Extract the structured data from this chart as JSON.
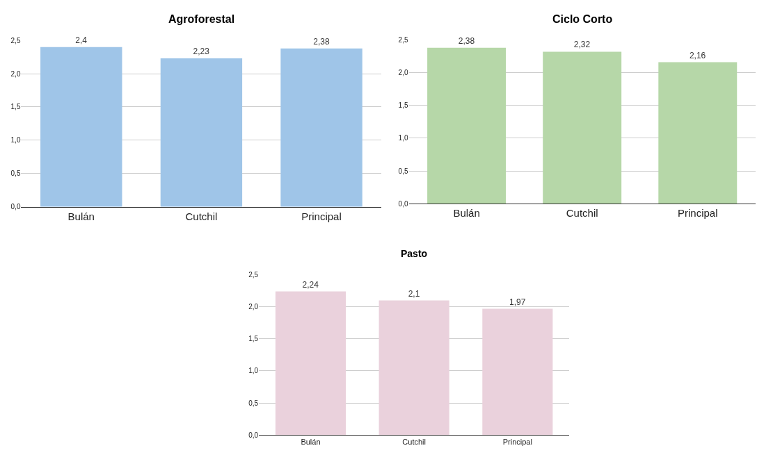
{
  "chart_data": [
    {
      "type": "bar",
      "title": "Agroforestal",
      "categories": [
        "Bulán",
        "Cutchil",
        "Principal"
      ],
      "values": [
        2.4,
        2.23,
        2.38
      ],
      "value_labels": [
        "2,4",
        "2,23",
        "2,38"
      ],
      "color": "#9fc5e8",
      "ylim": [
        0,
        2.5
      ],
      "yticks": [
        {
          "value": 0,
          "label": "0,0"
        },
        {
          "value": 0.5,
          "label": "0,5"
        },
        {
          "value": 1,
          "label": "1,0"
        },
        {
          "value": 1.5,
          "label": "1,5"
        },
        {
          "value": 2,
          "label": "2,0"
        },
        {
          "value": 2.5,
          "label": "2,5"
        }
      ],
      "grid": "y"
    },
    {
      "type": "bar",
      "title": "Ciclo Corto",
      "categories": [
        "Bulán",
        "Cutchil",
        "Principal"
      ],
      "values": [
        2.38,
        2.32,
        2.16
      ],
      "value_labels": [
        "2,38",
        "2,32",
        "2,16"
      ],
      "color": "#b6d7a8",
      "ylim": [
        0,
        2.5
      ],
      "yticks": [
        {
          "value": 0,
          "label": "0,0"
        },
        {
          "value": 0.5,
          "label": "0,5"
        },
        {
          "value": 1,
          "label": "1,0"
        },
        {
          "value": 1.5,
          "label": "1,5"
        },
        {
          "value": 2,
          "label": "2,0"
        },
        {
          "value": 2.5,
          "label": "2,5"
        }
      ],
      "grid": "y"
    },
    {
      "type": "bar",
      "title": "Pasto",
      "categories": [
        "Bulán",
        "Cutchil",
        "Principal"
      ],
      "values": [
        2.24,
        2.1,
        1.97
      ],
      "value_labels": [
        "2,24",
        "2,1",
        "1,97"
      ],
      "color": "#ead1dc",
      "ylim": [
        0,
        2.5
      ],
      "yticks": [
        {
          "value": 0,
          "label": "0,0"
        },
        {
          "value": 0.5,
          "label": "0,5"
        },
        {
          "value": 1,
          "label": "1,0"
        },
        {
          "value": 1.5,
          "label": "1,5"
        },
        {
          "value": 2,
          "label": "2,0"
        },
        {
          "value": 2.5,
          "label": "2,5"
        }
      ],
      "grid": "y"
    }
  ]
}
